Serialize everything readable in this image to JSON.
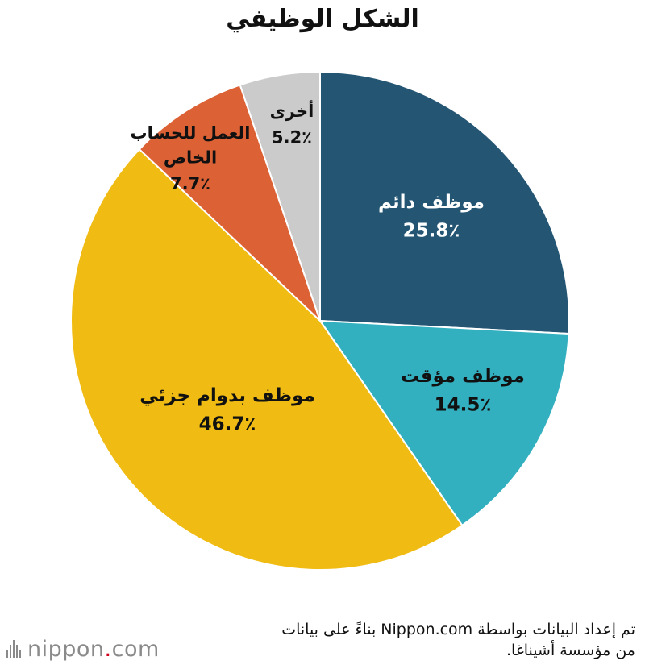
{
  "chart_data": {
    "type": "pie",
    "title": "الشكل الوظيفي",
    "value_suffix": "٪",
    "slices": [
      {
        "label": "موظف دائم",
        "value": 25.8,
        "value_text": "25.8٪",
        "color": "#245674"
      },
      {
        "label": "موظف مؤقت",
        "value": 14.5,
        "value_text": "14.5٪",
        "color": "#33b0c0"
      },
      {
        "label": "موظف بدوام جزئي",
        "value": 46.7,
        "value_text": "46.7٪",
        "color": "#f0bc14"
      },
      {
        "label": "العمل للحساب الخاص",
        "value": 7.7,
        "value_text": "7.7٪",
        "color": "#dc6236"
      },
      {
        "label": "أخرى",
        "value": 5.2,
        "value_text": "5.2٪",
        "color": "#cbcbcb"
      }
    ]
  },
  "source": {
    "line1": "تم إعداد البيانات بواسطة Nippon.com بناءً على بيانات",
    "line2": "من مؤسسة أشيناغا."
  },
  "logo": {
    "name": "nippon",
    "dot": ".",
    "suffix": "com"
  }
}
